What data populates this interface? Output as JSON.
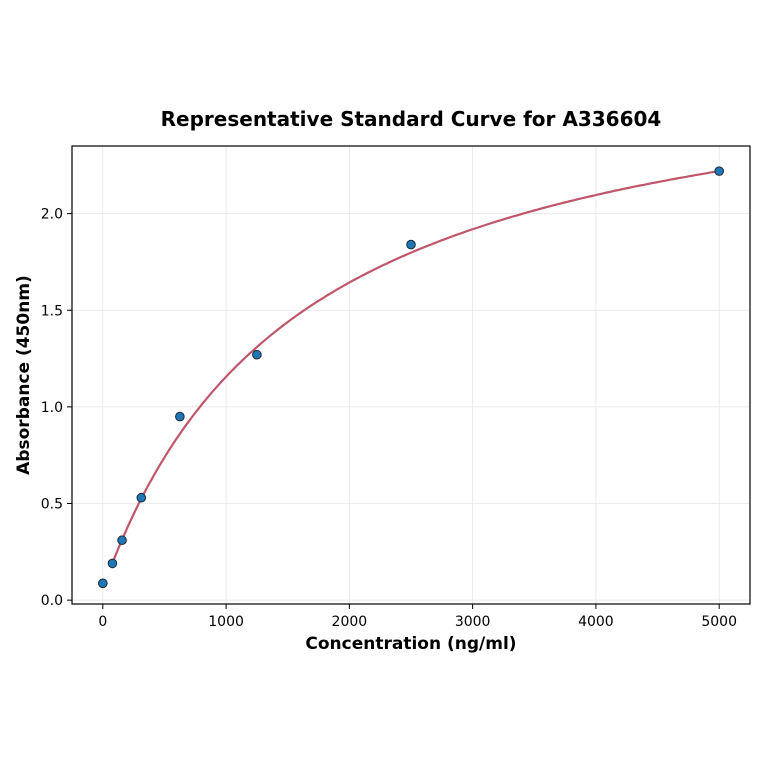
{
  "chart_data": {
    "type": "scatter",
    "title": "Representative Standard Curve for A336604",
    "xlabel": "Concentration (ng/ml)",
    "ylabel": "Absorbance (450nm)",
    "xlim": [
      -250,
      5250
    ],
    "ylim": [
      -0.02,
      2.35
    ],
    "xticks": [
      0,
      1000,
      2000,
      3000,
      4000,
      5000
    ],
    "yticks": [
      0.0,
      0.5,
      1.0,
      1.5,
      2.0
    ],
    "ytick_labels": [
      "0.0",
      "0.5",
      "1.0",
      "1.5",
      "2.0"
    ],
    "grid": true,
    "series": [
      {
        "type": "scatter",
        "x": [
          0,
          78,
          156,
          312,
          625,
          1250,
          2500,
          5000
        ],
        "y": [
          0.087,
          0.19,
          0.31,
          0.53,
          0.95,
          1.27,
          1.84,
          2.22
        ],
        "color": "#1f77b4"
      },
      {
        "type": "line",
        "fit": "curve",
        "x_range": [
          78,
          5000
        ],
        "color": "#c0566a"
      }
    ]
  }
}
